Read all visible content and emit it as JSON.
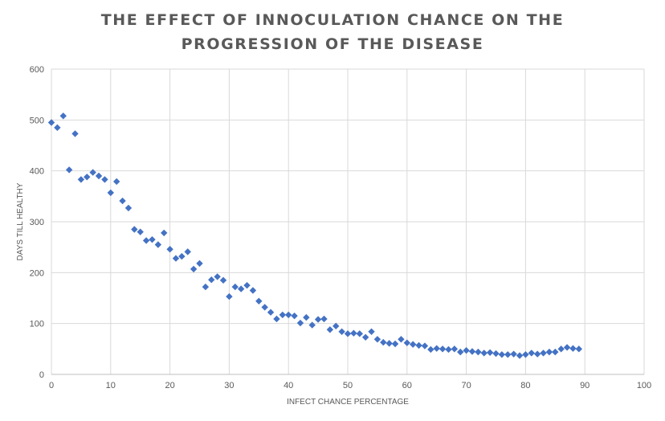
{
  "chart_data": {
    "type": "scatter",
    "title_lines": [
      "THE EFFECT OF INNOCULATION CHANCE ON THE",
      "PROGRESSION OF THE DISEASE"
    ],
    "xlabel": "INFECT CHANCE PERCENTAGE",
    "ylabel": "DAYS TILL HEALTHY",
    "xlim": [
      0,
      100
    ],
    "ylim": [
      0,
      600
    ],
    "xticks": [
      0,
      10,
      20,
      30,
      40,
      50,
      60,
      70,
      80,
      90,
      100
    ],
    "yticks": [
      0,
      100,
      200,
      300,
      400,
      500,
      600
    ],
    "grid": true,
    "legend": "none",
    "marker": "diamond",
    "color": "#4472C4",
    "series": [
      {
        "x": [
          0,
          1,
          2,
          3,
          4,
          5,
          6,
          7,
          8,
          9,
          10,
          11,
          12,
          13,
          14,
          15,
          16,
          17,
          18,
          19,
          20,
          21,
          22,
          23,
          24,
          25,
          26,
          27,
          28,
          29,
          30,
          31,
          32,
          33,
          34,
          35,
          36,
          37,
          38,
          39,
          40,
          41,
          42,
          43,
          44,
          45,
          46,
          47,
          48,
          49,
          50,
          51,
          52,
          53,
          54,
          55,
          56,
          57,
          58,
          59,
          60,
          61,
          62,
          63,
          64,
          65,
          66,
          67,
          68,
          69,
          70,
          71,
          72,
          73,
          74,
          75,
          76,
          77,
          78,
          79,
          80,
          81,
          82,
          83,
          84,
          85,
          86,
          87,
          88,
          89
        ],
        "y": [
          495,
          485,
          508,
          402,
          473,
          383,
          388,
          397,
          390,
          383,
          357,
          379,
          341,
          327,
          285,
          280,
          263,
          265,
          255,
          278,
          246,
          228,
          232,
          241,
          207,
          218,
          172,
          186,
          192,
          185,
          153,
          172,
          168,
          175,
          165,
          144,
          132,
          122,
          109,
          117,
          117,
          115,
          101,
          112,
          97,
          108,
          109,
          88,
          95,
          84,
          80,
          81,
          80,
          73,
          84,
          69,
          63,
          61,
          60,
          69,
          62,
          59,
          57,
          56,
          49,
          51,
          50,
          49,
          50,
          44,
          47,
          45,
          44,
          42,
          43,
          41,
          39,
          39,
          40,
          37,
          39,
          42,
          40,
          42,
          44,
          44,
          50,
          53,
          51,
          50
        ]
      }
    ]
  }
}
